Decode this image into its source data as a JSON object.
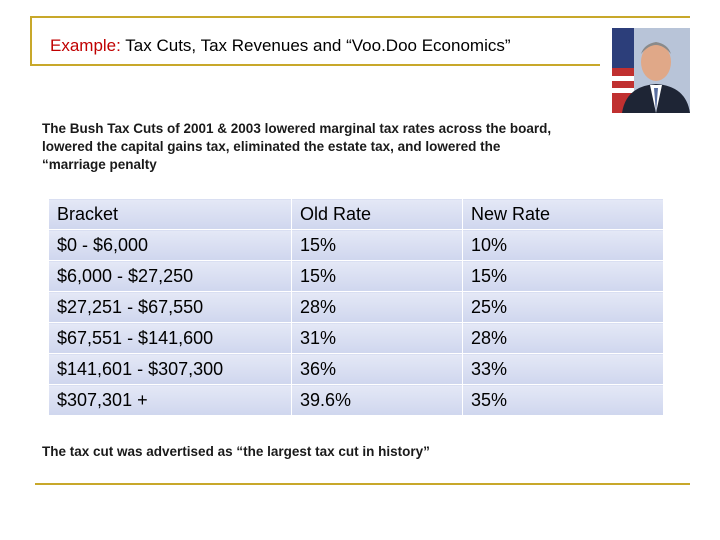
{
  "title": {
    "label": "Example:",
    "text": "Tax Cuts, Tax Revenues and “Voo.Doo Economics”"
  },
  "paragraph": [
    "The Bush Tax Cuts of 2001 & 2003 lowered marginal tax rates across the board,",
    "lowered the capital gains tax,  eliminated the estate tax, and lowered the",
    "“marriage penalty"
  ],
  "table": {
    "header": [
      "Bracket",
      "Old Rate",
      "New Rate"
    ],
    "rows": [
      [
        "$0 - $6,000",
        "15%",
        "10%"
      ],
      [
        "$6,000 - $27,250",
        "15%",
        "15%"
      ],
      [
        "$27,251 - $67,550",
        "28%",
        "25%"
      ],
      [
        "$67,551 - $141,600",
        "31%",
        "28%"
      ],
      [
        "$141,601 - $307,300",
        "36%",
        "33%"
      ],
      [
        "$307,301 +",
        "39.6%",
        "35%"
      ]
    ]
  },
  "footer": "The tax cut was advertised as “the largest tax cut in history”"
}
